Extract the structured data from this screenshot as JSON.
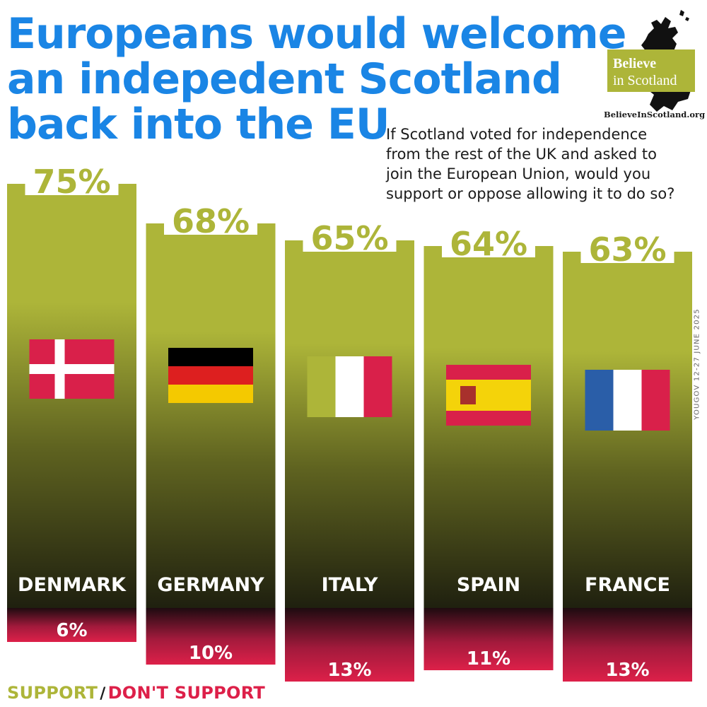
{
  "title_lines": [
    "Europeans would welcome",
    "an indepedent Scotland",
    "back into the EU"
  ],
  "question_lines": [
    "If Scotland voted for independence",
    "from the rest of the UK and asked to",
    "join the European Union, would you",
    "support or oppose allowing it to do so?"
  ],
  "logo": {
    "line1": "Believe",
    "line2": "in Scotland",
    "url": "BelieveInScotland.org"
  },
  "source": "YOUGOV 12-27 JUNE 2025",
  "legend": {
    "support": "SUPPORT",
    "separator": "/",
    "oppose": "DON'T SUPPORT"
  },
  "colors": {
    "support": "#adb539",
    "oppose": "#dd2049",
    "title": "#1a85e5",
    "bar_label": "#ffffff"
  },
  "chart_data": {
    "type": "bar",
    "categories": [
      "DENMARK",
      "GERMANY",
      "ITALY",
      "SPAIN",
      "FRANCE"
    ],
    "series": [
      {
        "name": "SUPPORT",
        "values": [
          75,
          68,
          65,
          64,
          63
        ],
        "labels": [
          "75%",
          "68%",
          "65%",
          "64%",
          "63%"
        ]
      },
      {
        "name": "DON'T SUPPORT",
        "values": [
          6,
          10,
          13,
          11,
          13
        ],
        "labels": [
          "6%",
          "10%",
          "13%",
          "11%",
          "13%"
        ]
      }
    ],
    "flags": [
      "denmark-flag-icon",
      "germany-flag-icon",
      "italy-flag-icon",
      "spain-flag-icon",
      "france-flag-icon"
    ]
  }
}
